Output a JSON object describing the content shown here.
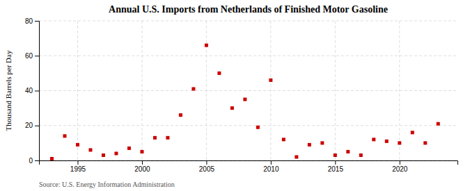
{
  "chart_data": {
    "type": "scatter",
    "title": "Annual U.S. Imports from Netherlands of Finished Motor Gasoline",
    "ylabel": "Thousand Barrels per Day",
    "source": "Source: U.S. Energy Information Administration",
    "x": [
      1993,
      1994,
      1995,
      1996,
      1997,
      1998,
      1999,
      2000,
      2001,
      2002,
      2003,
      2004,
      2005,
      2006,
      2007,
      2008,
      2009,
      2010,
      2011,
      2012,
      2013,
      2014,
      2015,
      2016,
      2017,
      2018,
      2019,
      2020,
      2021,
      2022,
      2023
    ],
    "values": [
      1,
      14,
      9,
      6,
      3,
      4,
      7,
      5,
      13,
      13,
      26,
      41,
      66,
      50,
      30,
      35,
      19,
      46,
      12,
      2,
      9,
      10,
      3,
      5,
      3,
      12,
      11,
      10,
      16,
      10,
      21
    ],
    "color": "#cc0000",
    "marker": "square",
    "xlim": [
      1992,
      2024.5
    ],
    "ylim": [
      0,
      80
    ],
    "xticks": [
      1995,
      2000,
      2005,
      2010,
      2015,
      2020
    ],
    "yticks": [
      0,
      20,
      40,
      60,
      80
    ],
    "grid": true
  }
}
